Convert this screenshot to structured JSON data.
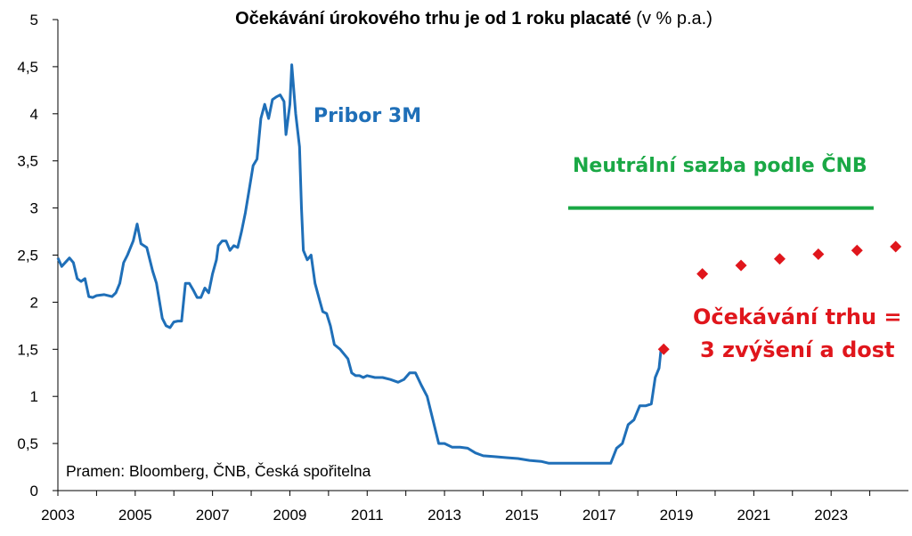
{
  "chart_data": {
    "type": "line",
    "title_bold": "Očekávání úrokového trhu je od 1 roku placaté",
    "title_normal": "(v % p.a.)",
    "xlim": [
      2003,
      2025
    ],
    "ylim": [
      0,
      5
    ],
    "x_ticks": [
      "2003",
      "2005",
      "2007",
      "2009",
      "2011",
      "2013",
      "2015",
      "2017",
      "2019",
      "2021",
      "2023"
    ],
    "y_ticks": [
      "0",
      "0,5",
      "1",
      "1,5",
      "2",
      "2,5",
      "3",
      "3,5",
      "4",
      "4,5",
      "5"
    ],
    "grid": false,
    "colors": {
      "pribor": "#1f6fb8",
      "neutral": "#1aa845",
      "market": "#e0161c"
    },
    "series": [
      {
        "name": "Pribor 3M",
        "points": [
          [
            2003.0,
            2.47
          ],
          [
            2003.1,
            2.38
          ],
          [
            2003.3,
            2.47
          ],
          [
            2003.4,
            2.42
          ],
          [
            2003.5,
            2.25
          ],
          [
            2003.6,
            2.22
          ],
          [
            2003.7,
            2.25
          ],
          [
            2003.8,
            2.06
          ],
          [
            2003.9,
            2.05
          ],
          [
            2004.0,
            2.07
          ],
          [
            2004.2,
            2.08
          ],
          [
            2004.4,
            2.06
          ],
          [
            2004.5,
            2.1
          ],
          [
            2004.6,
            2.2
          ],
          [
            2004.7,
            2.42
          ],
          [
            2004.8,
            2.5
          ],
          [
            2004.95,
            2.65
          ],
          [
            2005.05,
            2.83
          ],
          [
            2005.15,
            2.62
          ],
          [
            2005.3,
            2.58
          ],
          [
            2005.45,
            2.33
          ],
          [
            2005.55,
            2.2
          ],
          [
            2005.7,
            1.83
          ],
          [
            2005.8,
            1.75
          ],
          [
            2005.9,
            1.73
          ],
          [
            2006.0,
            1.79
          ],
          [
            2006.1,
            1.8
          ],
          [
            2006.2,
            1.8
          ],
          [
            2006.3,
            2.2
          ],
          [
            2006.4,
            2.2
          ],
          [
            2006.5,
            2.13
          ],
          [
            2006.6,
            2.05
          ],
          [
            2006.7,
            2.05
          ],
          [
            2006.8,
            2.15
          ],
          [
            2006.9,
            2.1
          ],
          [
            2007.0,
            2.3
          ],
          [
            2007.1,
            2.45
          ],
          [
            2007.15,
            2.6
          ],
          [
            2007.25,
            2.65
          ],
          [
            2007.35,
            2.65
          ],
          [
            2007.45,
            2.55
          ],
          [
            2007.55,
            2.6
          ],
          [
            2007.65,
            2.58
          ],
          [
            2007.75,
            2.75
          ],
          [
            2007.85,
            2.95
          ],
          [
            2007.95,
            3.2
          ],
          [
            2008.05,
            3.45
          ],
          [
            2008.15,
            3.52
          ],
          [
            2008.25,
            3.95
          ],
          [
            2008.35,
            4.1
          ],
          [
            2008.45,
            3.95
          ],
          [
            2008.55,
            4.15
          ],
          [
            2008.65,
            4.18
          ],
          [
            2008.75,
            4.2
          ],
          [
            2008.85,
            4.13
          ],
          [
            2008.9,
            3.78
          ],
          [
            2009.0,
            4.1
          ],
          [
            2009.05,
            4.52
          ],
          [
            2009.15,
            4.0
          ],
          [
            2009.25,
            3.65
          ],
          [
            2009.3,
            3.0
          ],
          [
            2009.35,
            2.55
          ],
          [
            2009.45,
            2.45
          ],
          [
            2009.55,
            2.5
          ],
          [
            2009.65,
            2.2
          ],
          [
            2009.75,
            2.05
          ],
          [
            2009.85,
            1.9
          ],
          [
            2009.95,
            1.88
          ],
          [
            2010.05,
            1.75
          ],
          [
            2010.15,
            1.55
          ],
          [
            2010.3,
            1.5
          ],
          [
            2010.4,
            1.45
          ],
          [
            2010.5,
            1.4
          ],
          [
            2010.6,
            1.25
          ],
          [
            2010.7,
            1.22
          ],
          [
            2010.8,
            1.22
          ],
          [
            2010.9,
            1.2
          ],
          [
            2011.0,
            1.22
          ],
          [
            2011.2,
            1.2
          ],
          [
            2011.4,
            1.2
          ],
          [
            2011.6,
            1.18
          ],
          [
            2011.8,
            1.15
          ],
          [
            2011.95,
            1.18
          ],
          [
            2012.1,
            1.25
          ],
          [
            2012.25,
            1.25
          ],
          [
            2012.4,
            1.12
          ],
          [
            2012.55,
            1.0
          ],
          [
            2012.7,
            0.75
          ],
          [
            2012.85,
            0.5
          ],
          [
            2013.0,
            0.5
          ],
          [
            2013.2,
            0.46
          ],
          [
            2013.4,
            0.46
          ],
          [
            2013.6,
            0.45
          ],
          [
            2013.8,
            0.4
          ],
          [
            2014.0,
            0.37
          ],
          [
            2014.3,
            0.36
          ],
          [
            2014.6,
            0.35
          ],
          [
            2014.9,
            0.34
          ],
          [
            2015.2,
            0.32
          ],
          [
            2015.5,
            0.31
          ],
          [
            2015.7,
            0.29
          ],
          [
            2016.0,
            0.29
          ],
          [
            2016.5,
            0.29
          ],
          [
            2017.0,
            0.29
          ],
          [
            2017.3,
            0.29
          ],
          [
            2017.45,
            0.45
          ],
          [
            2017.6,
            0.5
          ],
          [
            2017.75,
            0.7
          ],
          [
            2017.9,
            0.75
          ],
          [
            2018.05,
            0.9
          ],
          [
            2018.2,
            0.9
          ],
          [
            2018.35,
            0.92
          ],
          [
            2018.45,
            1.2
          ],
          [
            2018.55,
            1.3
          ],
          [
            2018.6,
            1.5
          ]
        ]
      },
      {
        "name": "Neutrální sazba podle ČNB",
        "style": "flat-line",
        "points": [
          [
            2016.2,
            3.0
          ],
          [
            2024.1,
            3.0
          ]
        ]
      },
      {
        "name": "Očekávání trhu",
        "style": "markers",
        "points": [
          [
            2018.67,
            1.5
          ],
          [
            2019.67,
            2.3
          ],
          [
            2020.67,
            2.39
          ],
          [
            2021.67,
            2.46
          ],
          [
            2022.67,
            2.51
          ],
          [
            2023.67,
            2.55
          ],
          [
            2024.67,
            2.59
          ]
        ]
      }
    ],
    "annotations": {
      "pribor": "Pribor 3M",
      "neutral": "Neutrální sazba podle ČNB",
      "market_line1": "Očekávání trhu =",
      "market_line2": "3 zvýšení a dost",
      "source": "Pramen: Bloomberg, ČNB, Česká spořitelna"
    }
  }
}
